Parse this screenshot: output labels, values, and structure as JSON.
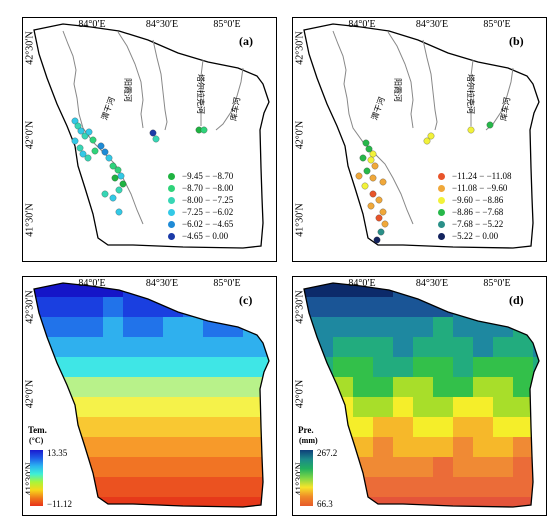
{
  "axes": {
    "top_ticks": [
      "84°0′E",
      "84°30′E",
      "85°0′E"
    ],
    "left_ticks": [
      "42°30′N",
      "42°0′N",
      "41°30′N"
    ]
  },
  "rivers": [
    "阳霞河",
    "塔尔拉克河",
    "库车河",
    "渭干河"
  ],
  "panels": {
    "a": {
      "label": "(a)",
      "legend": [
        {
          "text": "−9.45 − −8.70",
          "color": "#1fb341"
        },
        {
          "text": "−8.70 − −8.00",
          "color": "#2fd37a"
        },
        {
          "text": "−8.00 − −7.25",
          "color": "#37d6b5"
        },
        {
          "text": "−7.25 − −6.02",
          "color": "#33c9e6"
        },
        {
          "text": "−6.02 − −4.65",
          "color": "#1f8bd6"
        },
        {
          "text": "−4.65 − 0.00",
          "color": "#1b3aa8"
        }
      ]
    },
    "b": {
      "label": "(b)",
      "legend": [
        {
          "text": "−11.24 − −11.08",
          "color": "#e8542a"
        },
        {
          "text": "−11.08 − −9.60",
          "color": "#f0a83a"
        },
        {
          "text": "−9.60 − −8.86",
          "color": "#f2f23a"
        },
        {
          "text": "−8.86 − −7.68",
          "color": "#27b84a"
        },
        {
          "text": "−7.68 − −5.22",
          "color": "#2a9088"
        },
        {
          "text": "−5.22 − 0.00",
          "color": "#13235e"
        }
      ]
    },
    "c": {
      "label": "(c)",
      "cb_title": "Tem.",
      "cb_unit": "(°C)",
      "cb_max": "13.35",
      "cb_min": "−11.12",
      "cb_colors": [
        "#e8321a",
        "#f07a1a",
        "#f7d81a",
        "#a8f53a",
        "#3ef0d6",
        "#2bb4f0",
        "#1f5de8",
        "#1a1ad0"
      ]
    },
    "d": {
      "label": "(d)",
      "cb_title": "Pre.",
      "cb_unit": "(mm)",
      "cb_max": "267.2",
      "cb_min": "66.3",
      "cb_colors": [
        "#e65a2a",
        "#f08a28",
        "#f7e42a",
        "#7fd646",
        "#22b05e",
        "#1c8a8a",
        "#0e3f7a"
      ]
    }
  },
  "color_scales": {
    "temp_grid": [
      "#1515c8",
      "#1a3fe0",
      "#2173ea",
      "#2fb0ee",
      "#3fe6e6",
      "#b8f28a",
      "#f5f24a",
      "#f9c832",
      "#f79a2a",
      "#f17424",
      "#eb5220",
      "#e6391a"
    ],
    "prec_grid": [
      "#0c2a6a",
      "#1a5596",
      "#1e88a0",
      "#22ac7e",
      "#33c04a",
      "#a8de2a",
      "#f5ee2a",
      "#f6b82a",
      "#f08a34",
      "#eb6c38",
      "#e4543a"
    ]
  }
}
